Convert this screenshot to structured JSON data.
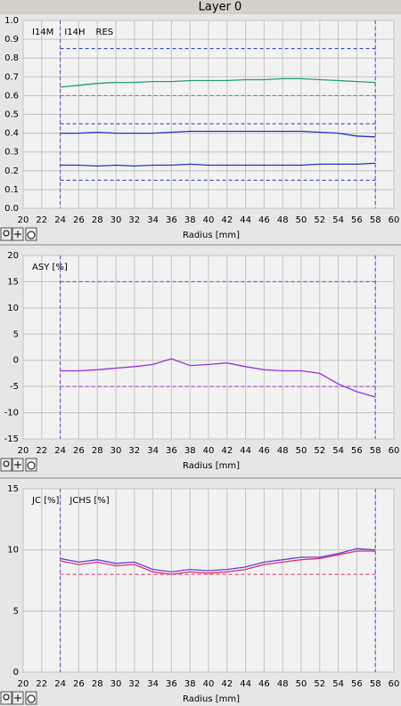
{
  "title": "Layer 0",
  "chart_data": [
    {
      "type": "line",
      "x": [
        24,
        26,
        28,
        30,
        32,
        34,
        36,
        38,
        40,
        42,
        44,
        46,
        48,
        50,
        52,
        54,
        56,
        58
      ],
      "series": [
        {
          "name": "I14M",
          "color": "#1fa07a",
          "values": [
            0.645,
            0.655,
            0.665,
            0.67,
            0.67,
            0.675,
            0.675,
            0.68,
            0.68,
            0.68,
            0.685,
            0.685,
            0.69,
            0.69,
            0.685,
            0.68,
            0.675,
            0.67
          ]
        },
        {
          "name": "I14H",
          "color": "#2233c0",
          "values": [
            0.4,
            0.4,
            0.405,
            0.4,
            0.4,
            0.4,
            0.405,
            0.41,
            0.41,
            0.41,
            0.41,
            0.41,
            0.41,
            0.41,
            0.405,
            0.4,
            0.385,
            0.38
          ]
        },
        {
          "name": "RES",
          "color": "#2233c0",
          "values": [
            0.23,
            0.23,
            0.225,
            0.23,
            0.225,
            0.23,
            0.23,
            0.235,
            0.23,
            0.23,
            0.23,
            0.23,
            0.23,
            0.23,
            0.235,
            0.235,
            0.235,
            0.24
          ]
        }
      ],
      "xlim": [
        20,
        60
      ],
      "xticks": [
        20,
        22,
        24,
        26,
        28,
        30,
        32,
        34,
        36,
        38,
        40,
        42,
        44,
        46,
        48,
        50,
        52,
        54,
        56,
        58,
        60
      ],
      "ylim": [
        0,
        1
      ],
      "yticks": [
        {
          "value": 0,
          "label": "0.0"
        },
        0.1,
        0.2,
        0.3,
        0.4,
        0.5,
        0.6,
        0.7,
        0.8,
        0.9,
        {
          "value": 1,
          "label": "1.0"
        }
      ],
      "xlabel": "Radius [mm]",
      "grid": true,
      "hlines": [
        {
          "value": 0.85,
          "color": "#2233c0"
        },
        {
          "value": 0.6,
          "color": "#1fa07a"
        },
        {
          "value": 0.45,
          "color": "#2233c0"
        },
        {
          "value": 0.15,
          "color": "#2233c0"
        }
      ],
      "vlines": [
        {
          "value": 24,
          "color": "#7040d0"
        },
        {
          "value": 58,
          "color": "#7040d0"
        }
      ]
    },
    {
      "type": "line",
      "x": [
        24,
        26,
        28,
        30,
        32,
        34,
        36,
        38,
        40,
        42,
        44,
        46,
        48,
        50,
        52,
        54,
        56,
        58
      ],
      "series": [
        {
          "name": "ASY [%]",
          "color": "#9a30e0",
          "values": [
            -2,
            -2,
            -1.8,
            -1.5,
            -1.2,
            -0.8,
            0.3,
            -1,
            -0.8,
            -0.5,
            -1.2,
            -1.8,
            -2,
            -2,
            -2.5,
            -4.5,
            -6,
            -7
          ]
        }
      ],
      "xlim": [
        20,
        60
      ],
      "xticks": [
        20,
        22,
        24,
        26,
        28,
        30,
        32,
        34,
        36,
        38,
        40,
        42,
        44,
        46,
        48,
        50,
        52,
        54,
        56,
        58,
        60
      ],
      "ylim": [
        -15,
        20
      ],
      "yticks": [
        -15,
        -10,
        -5,
        0,
        5,
        10,
        15,
        20
      ],
      "xlabel": "Radius [mm]",
      "grid": true,
      "hlines": [
        {
          "value": 15,
          "color": "#9a30e0"
        },
        {
          "value": -5,
          "color": "#9a30e0"
        }
      ],
      "vlines": [
        {
          "value": 24,
          "color": "#7040d0"
        },
        {
          "value": 58,
          "color": "#7040d0"
        }
      ]
    },
    {
      "type": "line",
      "x": [
        24,
        26,
        28,
        30,
        32,
        34,
        36,
        38,
        40,
        42,
        44,
        46,
        48,
        50,
        52,
        54,
        56,
        58
      ],
      "series": [
        {
          "name": "JC [%]",
          "color": "#e03070",
          "values": [
            9.1,
            8.8,
            9,
            8.7,
            8.8,
            8.2,
            8,
            8.2,
            8.1,
            8.2,
            8.4,
            8.8,
            9,
            9.2,
            9.3,
            9.6,
            9.9,
            9.9
          ]
        },
        {
          "name": "JCHS [%]",
          "color": "#6040e0",
          "values": [
            9.3,
            9,
            9.2,
            8.9,
            9,
            8.4,
            8.2,
            8.4,
            8.3,
            8.4,
            8.6,
            9,
            9.2,
            9.4,
            9.4,
            9.7,
            10.1,
            10
          ]
        }
      ],
      "xlim": [
        20,
        60
      ],
      "xticks": [
        20,
        22,
        24,
        26,
        28,
        30,
        32,
        34,
        36,
        38,
        40,
        42,
        44,
        46,
        48,
        50,
        52,
        54,
        56,
        58,
        60
      ],
      "ylim": [
        0,
        15
      ],
      "yticks": [
        0,
        5,
        10,
        15
      ],
      "xlabel": "Radius [mm]",
      "grid": true,
      "hlines": [
        {
          "value": 8,
          "color": "#e03070"
        }
      ],
      "vlines": [
        {
          "value": 24,
          "color": "#7040d0"
        },
        {
          "value": 58,
          "color": "#7040d0"
        }
      ]
    }
  ]
}
